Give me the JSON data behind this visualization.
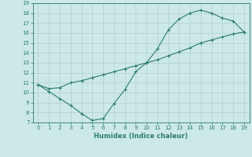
{
  "xlabel": "Humidex (Indice chaleur)",
  "line1_x": [
    0,
    1,
    2,
    3,
    4,
    5,
    6,
    7,
    8,
    9,
    10,
    11,
    12,
    13,
    14,
    15,
    16,
    17,
    18,
    19
  ],
  "line1_y": [
    10.8,
    10.1,
    9.4,
    8.7,
    7.9,
    7.2,
    7.4,
    8.9,
    10.3,
    12.1,
    13.0,
    14.4,
    16.3,
    17.4,
    18.0,
    18.3,
    18.0,
    17.5,
    17.2,
    16.1
  ],
  "line2_x": [
    0,
    1,
    2,
    3,
    4,
    5,
    6,
    7,
    8,
    9,
    10,
    11,
    12,
    13,
    14,
    15,
    16,
    17,
    18,
    19
  ],
  "line2_y": [
    10.8,
    10.4,
    10.5,
    11.0,
    11.2,
    11.5,
    11.8,
    12.1,
    12.4,
    12.7,
    13.0,
    13.3,
    13.7,
    14.1,
    14.5,
    15.0,
    15.3,
    15.6,
    15.9,
    16.1
  ],
  "line_color": "#2e7d6e",
  "bg_color": "#cce8e8",
  "grid_color": "#b0d0d0",
  "xlim": [
    -0.5,
    19.5
  ],
  "ylim": [
    7,
    19
  ],
  "xticks": [
    0,
    1,
    2,
    3,
    4,
    5,
    6,
    7,
    8,
    9,
    10,
    11,
    12,
    13,
    14,
    15,
    16,
    17,
    18,
    19
  ],
  "yticks": [
    7,
    8,
    9,
    10,
    11,
    12,
    13,
    14,
    15,
    16,
    17,
    18,
    19
  ]
}
